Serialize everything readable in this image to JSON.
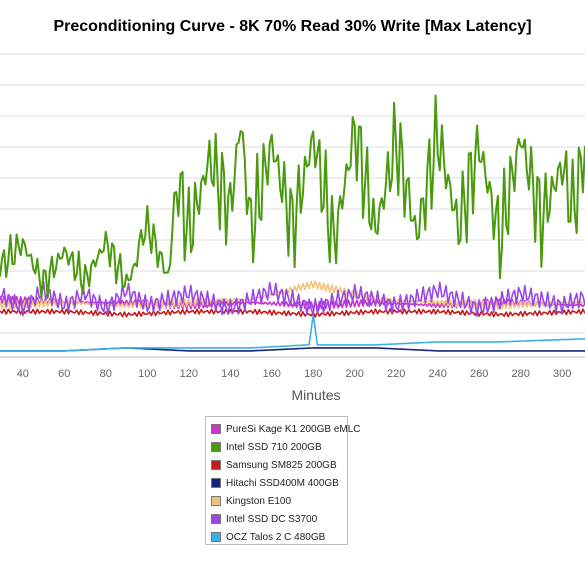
{
  "chart_data": {
    "type": "line",
    "title": "Preconditioning Curve - 8K 70% Read 30% Write [Max Latency]",
    "xlabel": "Minutes",
    "ylabel": "",
    "x_visible_range": [
      29,
      311
    ],
    "x_ticks": [
      40,
      60,
      80,
      100,
      120,
      140,
      160,
      180,
      200,
      220,
      240,
      260,
      280,
      300
    ],
    "y_visible_range": [
      0,
      100
    ],
    "y_scale_note": "no y tick labels visible; values in relative units of plot height",
    "grid": true,
    "legend_position": "bottom-center",
    "series": [
      {
        "name": "PureSi Kage K1 200GB eMLC",
        "color": "#cc33cc",
        "x": [
          29,
          60,
          90,
          120,
          150,
          180,
          210,
          240,
          270,
          311
        ],
        "values": [
          19,
          18,
          18,
          17,
          18,
          17,
          18,
          17,
          18,
          17
        ]
      },
      {
        "name": "Intel SSD 710 200GB",
        "color": "#4a9a0e",
        "x": [
          29,
          40,
          50,
          60,
          70,
          80,
          90,
          100,
          110,
          115,
          120,
          130,
          140,
          145,
          150,
          160,
          170,
          180,
          190,
          200,
          210,
          220,
          230,
          240,
          250,
          260,
          270,
          280,
          290,
          300,
          305,
          311
        ],
        "values": [
          30,
          45,
          18,
          40,
          20,
          46,
          18,
          49,
          15,
          60,
          25,
          76,
          42,
          100,
          28,
          86,
          30,
          90,
          20,
          95,
          28,
          88,
          25,
          92,
          30,
          85,
          22,
          90,
          35,
          72,
          42,
          80
        ]
      },
      {
        "name": "Samsung SM825 200GB",
        "color": "#c41a1a",
        "x": [
          29,
          60,
          90,
          120,
          150,
          180,
          210,
          240,
          270,
          311
        ],
        "values": [
          15,
          15,
          14,
          15,
          15,
          14,
          15,
          15,
          14,
          15
        ]
      },
      {
        "name": "Hitachi SSD400M 400GB",
        "color": "#16247a",
        "x": [
          29,
          60,
          90,
          120,
          150,
          180,
          210,
          240,
          270,
          311
        ],
        "values": [
          2,
          2,
          3,
          2,
          2,
          3,
          3,
          2,
          2,
          2
        ]
      },
      {
        "name": "Kingston E100",
        "color": "#f0c37a",
        "x": [
          29,
          60,
          90,
          120,
          150,
          180,
          210,
          240,
          270,
          311
        ],
        "values": [
          17,
          18,
          17,
          18,
          19,
          24,
          19,
          18,
          17,
          18
        ]
      },
      {
        "name": "Intel SSD DC S3700",
        "color": "#9b47e6",
        "x": [
          29,
          40,
          50,
          60,
          70,
          80,
          90,
          100,
          120,
          140,
          160,
          180,
          200,
          220,
          240,
          260,
          280,
          300,
          311
        ],
        "values": [
          21,
          16,
          22,
          17,
          21,
          16,
          22,
          17,
          21,
          16,
          22,
          16,
          21,
          17,
          22,
          16,
          21,
          17,
          20
        ]
      },
      {
        "name": "OCZ Talos 2 C 480GB",
        "color": "#3bb0e8",
        "x": [
          29,
          60,
          90,
          120,
          150,
          178,
          180,
          182,
          210,
          240,
          270,
          311
        ],
        "values": [
          2,
          2,
          3,
          3,
          3,
          4,
          14,
          4,
          4,
          5,
          5,
          6
        ]
      }
    ]
  }
}
